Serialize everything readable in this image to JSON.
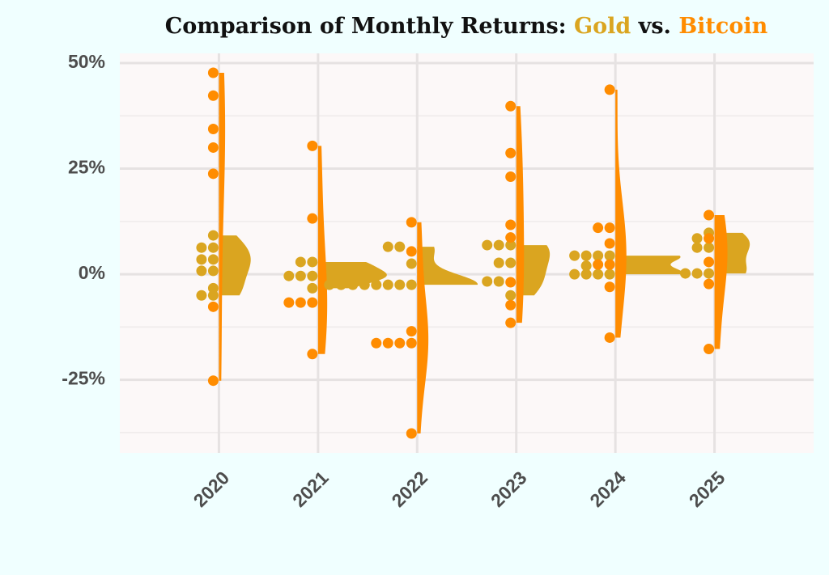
{
  "chart_data": {
    "type": "violin-dot",
    "title": "Comparison of Monthly Returns:",
    "title_joiner": "vs.",
    "categories": [
      "2020",
      "2021",
      "2022",
      "2023",
      "2024",
      "2025"
    ],
    "series": [
      {
        "name": "Gold",
        "color": "#DAA520",
        "values": [
          [
            9.2,
            6.3,
            6.3,
            3.5,
            3.5,
            0.8,
            0.8,
            -3.3,
            -5,
            -5
          ],
          [
            2.9,
            2.9,
            -0.4,
            -0.4,
            -0.4,
            -3.3
          ],
          [
            6.5,
            6.5,
            2.5,
            -2.5,
            -2.5,
            -2.5,
            -2.5,
            -2.5,
            -2.5,
            -2.5,
            -2.5
          ],
          [
            6.9,
            6.9,
            6.9,
            2.7,
            2.7,
            -1.7,
            -1.7,
            -5
          ],
          [
            4.4,
            4.4,
            4.4,
            4.4,
            2,
            0,
            0,
            0,
            0
          ],
          [
            9.8,
            8.5,
            6.3,
            6.3,
            0.2,
            0.2,
            0.2
          ]
        ]
      },
      {
        "name": "Bitcoin",
        "color": "#FF8C00",
        "values": [
          [
            47.7,
            42.3,
            34.4,
            30,
            23.8,
            -7.7,
            -25.2
          ],
          [
            30.4,
            13.2,
            -6.7,
            -6.7,
            -6.7,
            -18.9
          ],
          [
            12.3,
            5.4,
            -13.5,
            -16.3,
            -16.3,
            -16.3,
            -16.3,
            -37.7
          ],
          [
            39.8,
            28.7,
            23.1,
            11.7,
            8.7,
            -1.9,
            -7.3,
            -11.5
          ],
          [
            43.7,
            11,
            11,
            7.3,
            2.3,
            2.3,
            -3,
            -15
          ],
          [
            14,
            8.5,
            2.9,
            -2.3,
            -17.7
          ]
        ]
      }
    ],
    "ylim": [
      -42.3,
      52.3
    ],
    "yticks": [
      {
        "value": -25,
        "label": "-25%"
      },
      {
        "value": 0,
        "label": "0%"
      },
      {
        "value": 25,
        "label": "25%"
      },
      {
        "value": 50,
        "label": "50%"
      }
    ],
    "minor_yticks": [
      -37.5,
      -12.5,
      12.5,
      37.5
    ],
    "grid": true
  }
}
